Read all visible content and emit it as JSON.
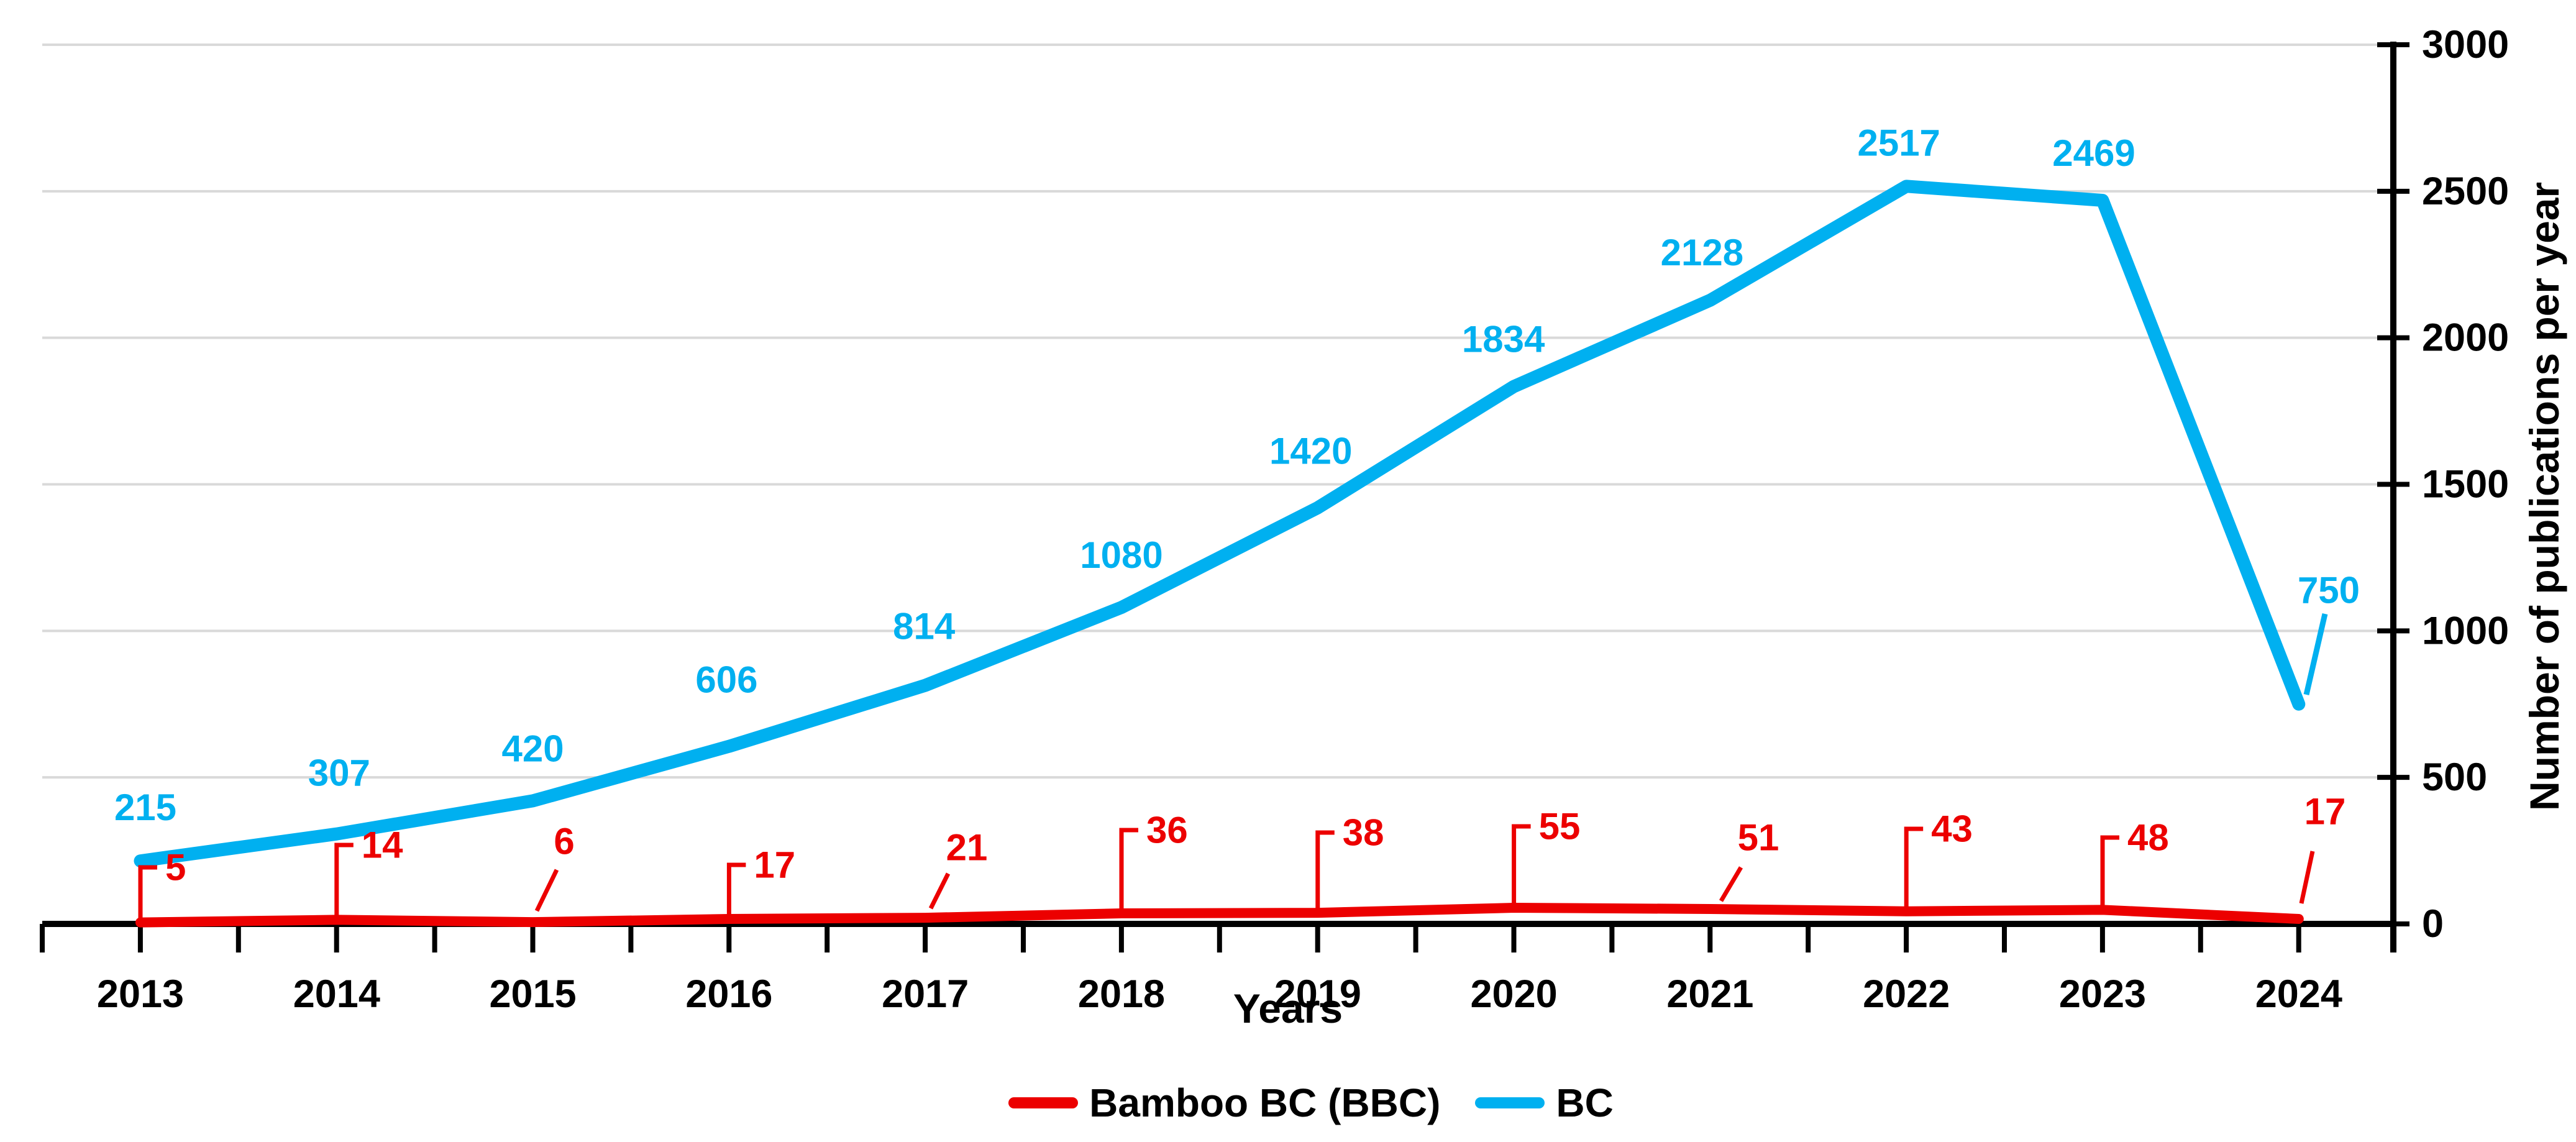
{
  "chart_data": {
    "type": "line",
    "title": "",
    "xlabel": "Years",
    "ylabel": "Number of publications per year",
    "x_categories": [
      "2013",
      "2014",
      "2015",
      "2016",
      "2017",
      "2018",
      "2019",
      "2020",
      "2021",
      "2022",
      "2023",
      "2024"
    ],
    "series": [
      {
        "name": "Bamboo BC (BBC)",
        "color": "#EC0000",
        "values": [
          5,
          14,
          6,
          17,
          21,
          36,
          38,
          55,
          51,
          43,
          48,
          17
        ],
        "data_labels": [
          "5",
          "14",
          "6",
          "17",
          "21",
          "36",
          "38",
          "55",
          "51",
          "43",
          "48",
          "17"
        ],
        "label_leaders": [
          "vertical",
          "vertical",
          "diagonal",
          "vertical",
          "diagonal",
          "vertical",
          "vertical",
          "vertical",
          "diagonal",
          "vertical",
          "vertical",
          "diagonal"
        ]
      },
      {
        "name": "BC",
        "color": "#00B0F0",
        "values": [
          215,
          307,
          420,
          606,
          814,
          1080,
          1420,
          1834,
          2128,
          2517,
          2469,
          750
        ],
        "data_labels": [
          "215",
          "307",
          "420",
          "606",
          "814",
          "1080",
          "1420",
          "1834",
          "2128",
          "2517",
          "2469",
          "750"
        ],
        "label_leaders": [
          "none",
          "none",
          "none",
          "none",
          "none",
          "none",
          "none",
          "none",
          "none",
          "none",
          "none",
          "diagonal"
        ]
      }
    ],
    "ylim": [
      0,
      3000
    ],
    "yticks": [
      0,
      500,
      1000,
      1500,
      2000,
      2500,
      3000
    ],
    "grid": "horizontal",
    "legend_position": "bottom",
    "colors": {
      "grid": "#D9D9D9",
      "axis": "#000000",
      "background": "#FFFFFF",
      "bbc_red": "#EC0000",
      "bc_blue": "#00B0F0"
    }
  }
}
